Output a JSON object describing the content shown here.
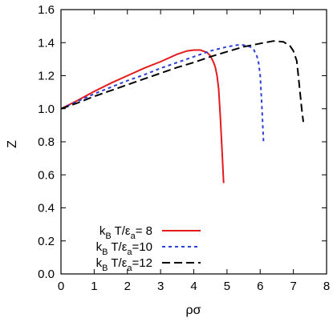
{
  "chart_data": {
    "type": "line",
    "title": "",
    "xlabel": "ρσ",
    "ylabel": "Z",
    "xlim": [
      0,
      8
    ],
    "ylim": [
      0,
      1.6
    ],
    "xticks": [
      0,
      1,
      2,
      3,
      4,
      5,
      6,
      7,
      8
    ],
    "yticks": [
      0.0,
      0.2,
      0.4,
      0.6,
      0.8,
      1.0,
      1.2,
      1.4,
      1.6
    ],
    "xtick_labels": [
      "0",
      "1",
      "2",
      "3",
      "4",
      "5",
      "6",
      "7",
      "8"
    ],
    "ytick_labels": [
      "0.0",
      "0.2",
      "0.4",
      "0.6",
      "0.8",
      "1.0",
      "1.2",
      "1.4",
      "1.6"
    ],
    "grid": false,
    "legend_position": "bottom-left",
    "series": [
      {
        "legend": {
          "k": "k",
          "sub1": "B",
          "mid": " T/ε",
          "sub2": "a",
          "eq": "= 8"
        },
        "color": "#e41a1c",
        "dash": "solid",
        "x": [
          0,
          0.5,
          1.0,
          1.5,
          2.0,
          2.5,
          3.0,
          3.5,
          3.8,
          4.0,
          4.2,
          4.4,
          4.5,
          4.6,
          4.65,
          4.7,
          4.75,
          4.8,
          4.85,
          4.9
        ],
        "y": [
          1.0,
          1.05,
          1.105,
          1.155,
          1.2,
          1.245,
          1.285,
          1.33,
          1.35,
          1.355,
          1.355,
          1.34,
          1.32,
          1.28,
          1.25,
          1.2,
          1.12,
          0.95,
          0.75,
          0.55
        ]
      },
      {
        "legend": {
          "k": "k",
          "sub1": "B",
          "mid": " T/ε",
          "sub2": "a",
          "eq": "=10"
        },
        "color": "#2c3fd6",
        "dash": "short",
        "x": [
          0,
          0.5,
          1.0,
          1.5,
          2.0,
          2.5,
          3.0,
          3.5,
          4.0,
          4.5,
          5.0,
          5.3,
          5.5,
          5.7,
          5.8,
          5.9,
          5.95,
          6.0,
          6.05,
          6.1
        ],
        "y": [
          1.0,
          1.045,
          1.09,
          1.13,
          1.17,
          1.205,
          1.245,
          1.28,
          1.315,
          1.35,
          1.375,
          1.385,
          1.385,
          1.375,
          1.36,
          1.32,
          1.28,
          1.2,
          1.02,
          0.8
        ]
      },
      {
        "legend": {
          "k": "k",
          "sub1": "B",
          "mid": " T/ε",
          "sub2": "a",
          "eq": "=12"
        },
        "color": "#000000",
        "dash": "long",
        "x": [
          0,
          0.5,
          1.0,
          1.5,
          2.0,
          2.5,
          3.0,
          3.5,
          4.0,
          4.5,
          5.0,
          5.5,
          6.0,
          6.4,
          6.7,
          6.9,
          7.0,
          7.1,
          7.15,
          7.2,
          7.25,
          7.3
        ],
        "y": [
          1.0,
          1.035,
          1.075,
          1.11,
          1.145,
          1.18,
          1.215,
          1.25,
          1.28,
          1.315,
          1.345,
          1.375,
          1.395,
          1.41,
          1.405,
          1.38,
          1.35,
          1.29,
          1.2,
          1.1,
          1.0,
          0.92
        ]
      }
    ]
  }
}
